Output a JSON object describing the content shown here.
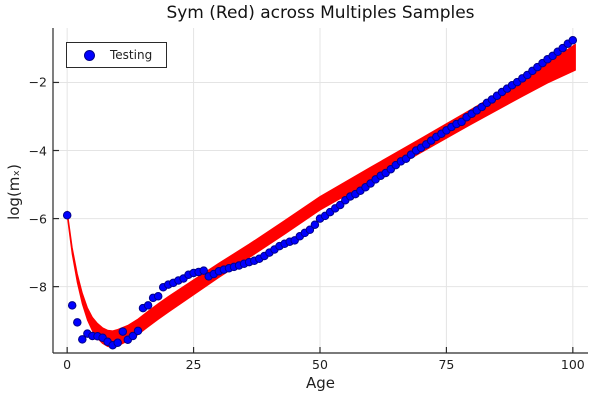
{
  "title": "Sym (Red) across Multiples Samples",
  "legend": {
    "label": "Testing",
    "marker_color": "#0000ff",
    "position": "top-left"
  },
  "axes": {
    "xlabel": "Age",
    "ylabel": "log(mₓ)",
    "xticks": [
      0,
      25,
      50,
      75,
      100
    ],
    "xtick_labels": [
      "0",
      "25",
      "50",
      "75",
      "100"
    ],
    "yticks": [
      -2,
      -4,
      -6,
      -8
    ],
    "ytick_labels": [
      "−2",
      "−4",
      "−6",
      "−8"
    ],
    "xlim": [
      -2.8,
      103
    ],
    "ylim": [
      -9.95,
      -0.4
    ],
    "grid": true
  },
  "colors": {
    "scatter_fill": "#0000ff",
    "scatter_stroke": "#00008b",
    "band_fill": "#ff0000",
    "gridline": "#e4e4e4",
    "axis": "#2a2a2a",
    "text": "#1f1f1f",
    "background": "#ffffff"
  },
  "chart_data": {
    "type": "scatter",
    "title": "Sym (Red) across Multiples Samples",
    "xlabel": "Age",
    "ylabel": "log(mₓ)",
    "xlim": [
      -2.8,
      103
    ],
    "ylim": [
      -9.95,
      -0.4
    ],
    "grid": true,
    "legend_position": "top-left",
    "series": [
      {
        "name": "Testing",
        "type": "scatter",
        "color": "#0000ff",
        "x": [
          0,
          1,
          2,
          3,
          4,
          5,
          6,
          7,
          8,
          9,
          10,
          11,
          12,
          13,
          14,
          15,
          16,
          17,
          18,
          19,
          20,
          21,
          22,
          23,
          24,
          25,
          26,
          27,
          28,
          29,
          30,
          31,
          32,
          33,
          34,
          35,
          36,
          37,
          38,
          39,
          40,
          41,
          42,
          43,
          44,
          45,
          46,
          47,
          48,
          49,
          50,
          51,
          52,
          53,
          54,
          55,
          56,
          57,
          58,
          59,
          60,
          61,
          62,
          63,
          64,
          65,
          66,
          67,
          68,
          69,
          70,
          71,
          72,
          73,
          74,
          75,
          76,
          77,
          78,
          79,
          80,
          81,
          82,
          83,
          84,
          85,
          86,
          87,
          88,
          89,
          90,
          91,
          92,
          93,
          94,
          95,
          96,
          97,
          98,
          99,
          100
        ],
        "y": [
          -5.9,
          -8.55,
          -9.05,
          -9.55,
          -9.38,
          -9.45,
          -9.46,
          -9.5,
          -9.62,
          -9.72,
          -9.65,
          -9.32,
          -9.56,
          -9.45,
          -9.3,
          -8.63,
          -8.55,
          -8.33,
          -8.28,
          -8.02,
          -7.94,
          -7.89,
          -7.82,
          -7.76,
          -7.65,
          -7.6,
          -7.57,
          -7.53,
          -7.7,
          -7.63,
          -7.55,
          -7.5,
          -7.46,
          -7.42,
          -7.38,
          -7.33,
          -7.28,
          -7.24,
          -7.18,
          -7.1,
          -7.0,
          -6.91,
          -6.81,
          -6.74,
          -6.68,
          -6.64,
          -6.52,
          -6.42,
          -6.33,
          -6.18,
          -6.0,
          -5.92,
          -5.81,
          -5.7,
          -5.6,
          -5.46,
          -5.35,
          -5.28,
          -5.18,
          -5.08,
          -4.97,
          -4.85,
          -4.74,
          -4.66,
          -4.55,
          -4.43,
          -4.32,
          -4.24,
          -4.12,
          -4.0,
          -3.92,
          -3.82,
          -3.71,
          -3.6,
          -3.51,
          -3.41,
          -3.31,
          -3.22,
          -3.16,
          -3.02,
          -2.92,
          -2.82,
          -2.72,
          -2.6,
          -2.5,
          -2.39,
          -2.28,
          -2.18,
          -2.08,
          -1.99,
          -1.88,
          -1.78,
          -1.66,
          -1.55,
          -1.43,
          -1.32,
          -1.22,
          -1.1,
          -0.99,
          -0.86,
          -0.76
        ]
      },
      {
        "name": "Sym (Red)",
        "type": "band",
        "color": "#ff0000",
        "x": [
          0,
          1,
          2,
          3,
          4,
          5,
          6,
          7,
          8,
          9,
          10,
          12,
          14,
          16,
          18,
          20,
          25,
          30,
          36,
          43,
          50,
          60,
          70,
          80,
          90,
          95,
          100.5
        ],
        "center": [
          -5.85,
          -6.95,
          -7.75,
          -8.35,
          -8.8,
          -9.1,
          -9.3,
          -9.44,
          -9.52,
          -9.54,
          -9.5,
          -9.37,
          -9.18,
          -8.95,
          -8.73,
          -8.52,
          -8.02,
          -7.52,
          -6.95,
          -6.26,
          -5.55,
          -4.7,
          -3.85,
          -3.0,
          -2.15,
          -1.72,
          -1.26
        ],
        "halfwidth": [
          0.07,
          0.1,
          0.13,
          0.16,
          0.18,
          0.2,
          0.22,
          0.23,
          0.24,
          0.24,
          0.24,
          0.23,
          0.23,
          0.23,
          0.23,
          0.23,
          0.22,
          0.21,
          0.2,
          0.2,
          0.2,
          0.21,
          0.21,
          0.22,
          0.26,
          0.3,
          0.38
        ]
      }
    ]
  }
}
